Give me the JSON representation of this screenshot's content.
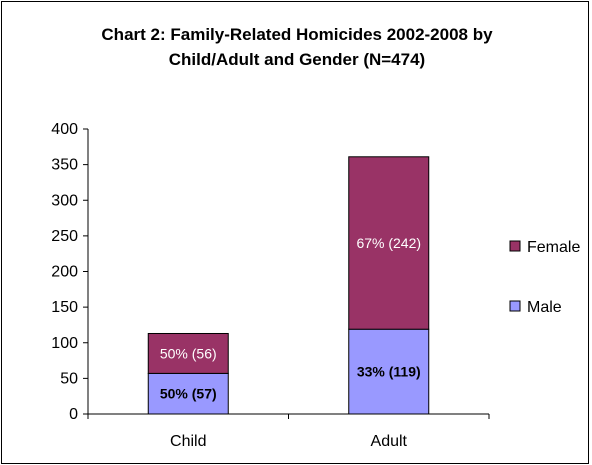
{
  "chart_data": {
    "type": "bar",
    "stacked": true,
    "title": "Chart 2: Family-Related Homicides 2002-2008 by Child/Adult and Gender (N=474)",
    "categories": [
      "Child",
      "Adult"
    ],
    "series": [
      {
        "name": "Male",
        "values": [
          57,
          119
        ],
        "labels": [
          "50% (57)",
          "33% (119)"
        ],
        "color": "#9999ff",
        "label_color": "#000000",
        "label_bold": true
      },
      {
        "name": "Female",
        "values": [
          56,
          242
        ],
        "labels": [
          "50% (56)",
          "67% (242)"
        ],
        "color": "#993366",
        "label_color": "#ffffff",
        "label_bold": false
      }
    ],
    "ylim": [
      0,
      400
    ],
    "yticks": [
      0,
      50,
      100,
      150,
      200,
      250,
      300,
      350,
      400
    ],
    "xlabel": "",
    "ylabel": "",
    "grid": false,
    "legend_position": "right"
  }
}
